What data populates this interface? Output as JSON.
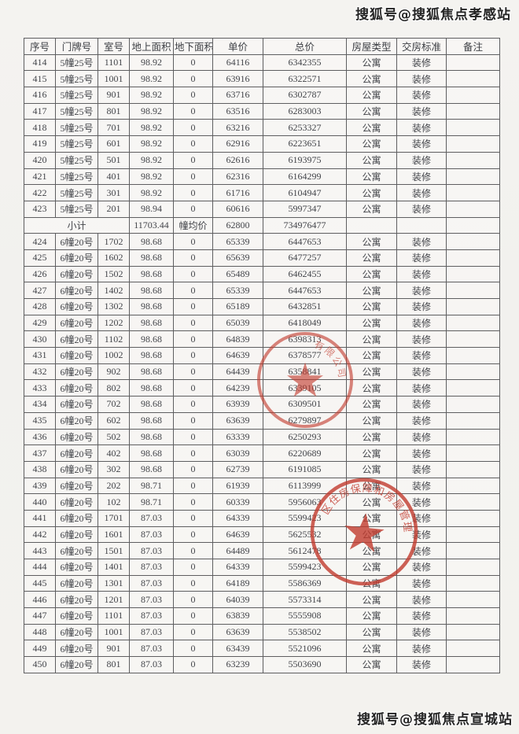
{
  "watermarks": {
    "top": "搜狐号@搜狐焦点孝感站",
    "bottom": "搜狐号@搜狐焦点宣城站"
  },
  "stamps": {
    "seal1": {
      "arc_text": "有限公司",
      "star": "★",
      "color": "#c23b2e"
    },
    "seal2": {
      "arc_text": "区住房保障和房屋管理局",
      "star": "★",
      "color": "#c23b2e"
    }
  },
  "table": {
    "columns": [
      "序号",
      "门牌号",
      "室号",
      "地上面积",
      "地下面积",
      "单价",
      "总价",
      "房屋类型",
      "交房标准",
      "备注"
    ],
    "rows": [
      [
        "414",
        "5幢25号",
        "1101",
        "98.92",
        "0",
        "64116",
        "6342355",
        "公寓",
        "装修",
        ""
      ],
      [
        "415",
        "5幢25号",
        "1001",
        "98.92",
        "0",
        "63916",
        "6322571",
        "公寓",
        "装修",
        ""
      ],
      [
        "416",
        "5幢25号",
        "901",
        "98.92",
        "0",
        "63716",
        "6302787",
        "公寓",
        "装修",
        ""
      ],
      [
        "417",
        "5幢25号",
        "801",
        "98.92",
        "0",
        "63516",
        "6283003",
        "公寓",
        "装修",
        ""
      ],
      [
        "418",
        "5幢25号",
        "701",
        "98.92",
        "0",
        "63216",
        "6253327",
        "公寓",
        "装修",
        ""
      ],
      [
        "419",
        "5幢25号",
        "601",
        "98.92",
        "0",
        "62916",
        "6223651",
        "公寓",
        "装修",
        ""
      ],
      [
        "420",
        "5幢25号",
        "501",
        "98.92",
        "0",
        "62616",
        "6193975",
        "公寓",
        "装修",
        ""
      ],
      [
        "421",
        "5幢25号",
        "401",
        "98.92",
        "0",
        "62316",
        "6164299",
        "公寓",
        "装修",
        ""
      ],
      [
        "422",
        "5幢25号",
        "301",
        "98.92",
        "0",
        "61716",
        "6104947",
        "公寓",
        "装修",
        ""
      ],
      [
        "423",
        "5幢25号",
        "201",
        "98.94",
        "0",
        "60616",
        "5997347",
        "公寓",
        "装修",
        ""
      ],
      {
        "subtotal": true,
        "label": "小计",
        "area": "11703.44",
        "avg_label": "幢均价",
        "unit_price": "62800",
        "total_price": "734976477"
      },
      [
        "424",
        "6幢20号",
        "1702",
        "98.68",
        "0",
        "65339",
        "6447653",
        "公寓",
        "装修",
        ""
      ],
      [
        "425",
        "6幢20号",
        "1602",
        "98.68",
        "0",
        "65639",
        "6477257",
        "公寓",
        "装修",
        ""
      ],
      [
        "426",
        "6幢20号",
        "1502",
        "98.68",
        "0",
        "65489",
        "6462455",
        "公寓",
        "装修",
        ""
      ],
      [
        "427",
        "6幢20号",
        "1402",
        "98.68",
        "0",
        "65339",
        "6447653",
        "公寓",
        "装修",
        ""
      ],
      [
        "428",
        "6幢20号",
        "1302",
        "98.68",
        "0",
        "65189",
        "6432851",
        "公寓",
        "装修",
        ""
      ],
      [
        "429",
        "6幢20号",
        "1202",
        "98.68",
        "0",
        "65039",
        "6418049",
        "公寓",
        "装修",
        ""
      ],
      [
        "430",
        "6幢20号",
        "1102",
        "98.68",
        "0",
        "64839",
        "6398313",
        "公寓",
        "装修",
        ""
      ],
      [
        "431",
        "6幢20号",
        "1002",
        "98.68",
        "0",
        "64639",
        "6378577",
        "公寓",
        "装修",
        ""
      ],
      [
        "432",
        "6幢20号",
        "902",
        "98.68",
        "0",
        "64439",
        "6358841",
        "公寓",
        "装修",
        ""
      ],
      [
        "433",
        "6幢20号",
        "802",
        "98.68",
        "0",
        "64239",
        "6339105",
        "公寓",
        "装修",
        ""
      ],
      [
        "434",
        "6幢20号",
        "702",
        "98.68",
        "0",
        "63939",
        "6309501",
        "公寓",
        "装修",
        ""
      ],
      [
        "435",
        "6幢20号",
        "602",
        "98.68",
        "0",
        "63639",
        "6279897",
        "公寓",
        "装修",
        ""
      ],
      [
        "436",
        "6幢20号",
        "502",
        "98.68",
        "0",
        "63339",
        "6250293",
        "公寓",
        "装修",
        ""
      ],
      [
        "437",
        "6幢20号",
        "402",
        "98.68",
        "0",
        "63039",
        "6220689",
        "公寓",
        "装修",
        ""
      ],
      [
        "438",
        "6幢20号",
        "302",
        "98.68",
        "0",
        "62739",
        "6191085",
        "公寓",
        "装修",
        ""
      ],
      [
        "439",
        "6幢20号",
        "202",
        "98.71",
        "0",
        "61939",
        "6113999",
        "公寓",
        "装修",
        ""
      ],
      [
        "440",
        "6幢20号",
        "102",
        "98.71",
        "0",
        "60339",
        "5956063",
        "公寓",
        "装修",
        ""
      ],
      [
        "441",
        "6幢20号",
        "1701",
        "87.03",
        "0",
        "64339",
        "5599423",
        "公寓",
        "装修",
        ""
      ],
      [
        "442",
        "6幢20号",
        "1601",
        "87.03",
        "0",
        "64639",
        "5625532",
        "公寓",
        "装修",
        ""
      ],
      [
        "443",
        "6幢20号",
        "1501",
        "87.03",
        "0",
        "64489",
        "5612478",
        "公寓",
        "装修",
        ""
      ],
      [
        "444",
        "6幢20号",
        "1401",
        "87.03",
        "0",
        "64339",
        "5599423",
        "公寓",
        "装修",
        ""
      ],
      [
        "445",
        "6幢20号",
        "1301",
        "87.03",
        "0",
        "64189",
        "5586369",
        "公寓",
        "装修",
        ""
      ],
      [
        "446",
        "6幢20号",
        "1201",
        "87.03",
        "0",
        "64039",
        "5573314",
        "公寓",
        "装修",
        ""
      ],
      [
        "447",
        "6幢20号",
        "1101",
        "87.03",
        "0",
        "63839",
        "5555908",
        "公寓",
        "装修",
        ""
      ],
      [
        "448",
        "6幢20号",
        "1001",
        "87.03",
        "0",
        "63639",
        "5538502",
        "公寓",
        "装修",
        ""
      ],
      [
        "449",
        "6幢20号",
        "901",
        "87.03",
        "0",
        "63439",
        "5521096",
        "公寓",
        "装修",
        ""
      ],
      [
        "450",
        "6幢20号",
        "801",
        "87.03",
        "0",
        "63239",
        "5503690",
        "公寓",
        "装修",
        ""
      ]
    ]
  }
}
